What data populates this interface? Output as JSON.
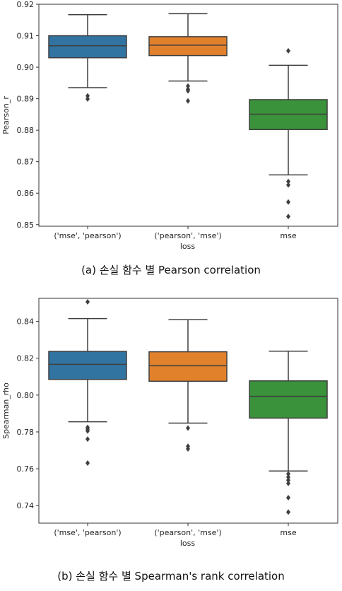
{
  "captions": {
    "a": "(a) 손실 함수 별 Pearson correlation",
    "b": "(b) 손실 함수 별 Spearman's rank correlation"
  },
  "chart_data": [
    {
      "type": "box",
      "title": "",
      "xlabel": "loss",
      "ylabel": "Pearson_r",
      "ylim": [
        0.8495,
        0.92
      ],
      "yticks": [
        0.85,
        0.86,
        0.87,
        0.88,
        0.89,
        0.9,
        0.91,
        0.92
      ],
      "ytick_labels": [
        "0.85",
        "0.86",
        "0.87",
        "0.88",
        "0.89",
        "0.90",
        "0.91",
        "0.92"
      ],
      "categories": [
        "('mse', 'pearson')",
        "('pearson', 'mse')",
        "mse"
      ],
      "colors": [
        "#3274a1",
        "#e1812c",
        "#3a923a"
      ],
      "boxes": [
        {
          "whislo": 0.8935,
          "q1": 0.903,
          "med": 0.9068,
          "q3": 0.91,
          "whishi": 0.9167,
          "fliers": [
            0.8909,
            0.8899
          ]
        },
        {
          "whislo": 0.8956,
          "q1": 0.9037,
          "med": 0.907,
          "q3": 0.9097,
          "whishi": 0.917,
          "fliers": [
            0.894,
            0.893,
            0.8925,
            0.8893
          ]
        },
        {
          "whislo": 0.8658,
          "q1": 0.8802,
          "med": 0.8851,
          "q3": 0.8897,
          "whishi": 0.9006,
          "fliers": [
            0.9052,
            0.8637,
            0.8626,
            0.8572,
            0.8526
          ]
        }
      ]
    },
    {
      "type": "box",
      "title": "",
      "xlabel": "loss",
      "ylabel": "Spearman_rho",
      "ylim": [
        0.7305,
        0.8525
      ],
      "yticks": [
        0.74,
        0.76,
        0.78,
        0.8,
        0.82,
        0.84
      ],
      "ytick_labels": [
        "0.74",
        "0.76",
        "0.78",
        "0.80",
        "0.82",
        "0.84"
      ],
      "categories": [
        "('mse', 'pearson')",
        "('pearson', 'mse')",
        "mse"
      ],
      "colors": [
        "#3274a1",
        "#e1812c",
        "#3a923a"
      ],
      "boxes": [
        {
          "whislo": 0.7855,
          "q1": 0.8085,
          "med": 0.8167,
          "q3": 0.8237,
          "whishi": 0.8415,
          "fliers": [
            0.8506,
            0.7825,
            0.7815,
            0.7805,
            0.7761,
            0.7631
          ]
        },
        {
          "whislo": 0.7848,
          "q1": 0.8075,
          "med": 0.8159,
          "q3": 0.8235,
          "whishi": 0.8409,
          "fliers": [
            0.7821,
            0.7722,
            0.7708
          ]
        },
        {
          "whislo": 0.7588,
          "q1": 0.7875,
          "med": 0.7993,
          "q3": 0.8077,
          "whishi": 0.8238,
          "fliers": [
            0.7572,
            0.7555,
            0.7538,
            0.7521,
            0.7443,
            0.7365
          ]
        }
      ]
    }
  ]
}
